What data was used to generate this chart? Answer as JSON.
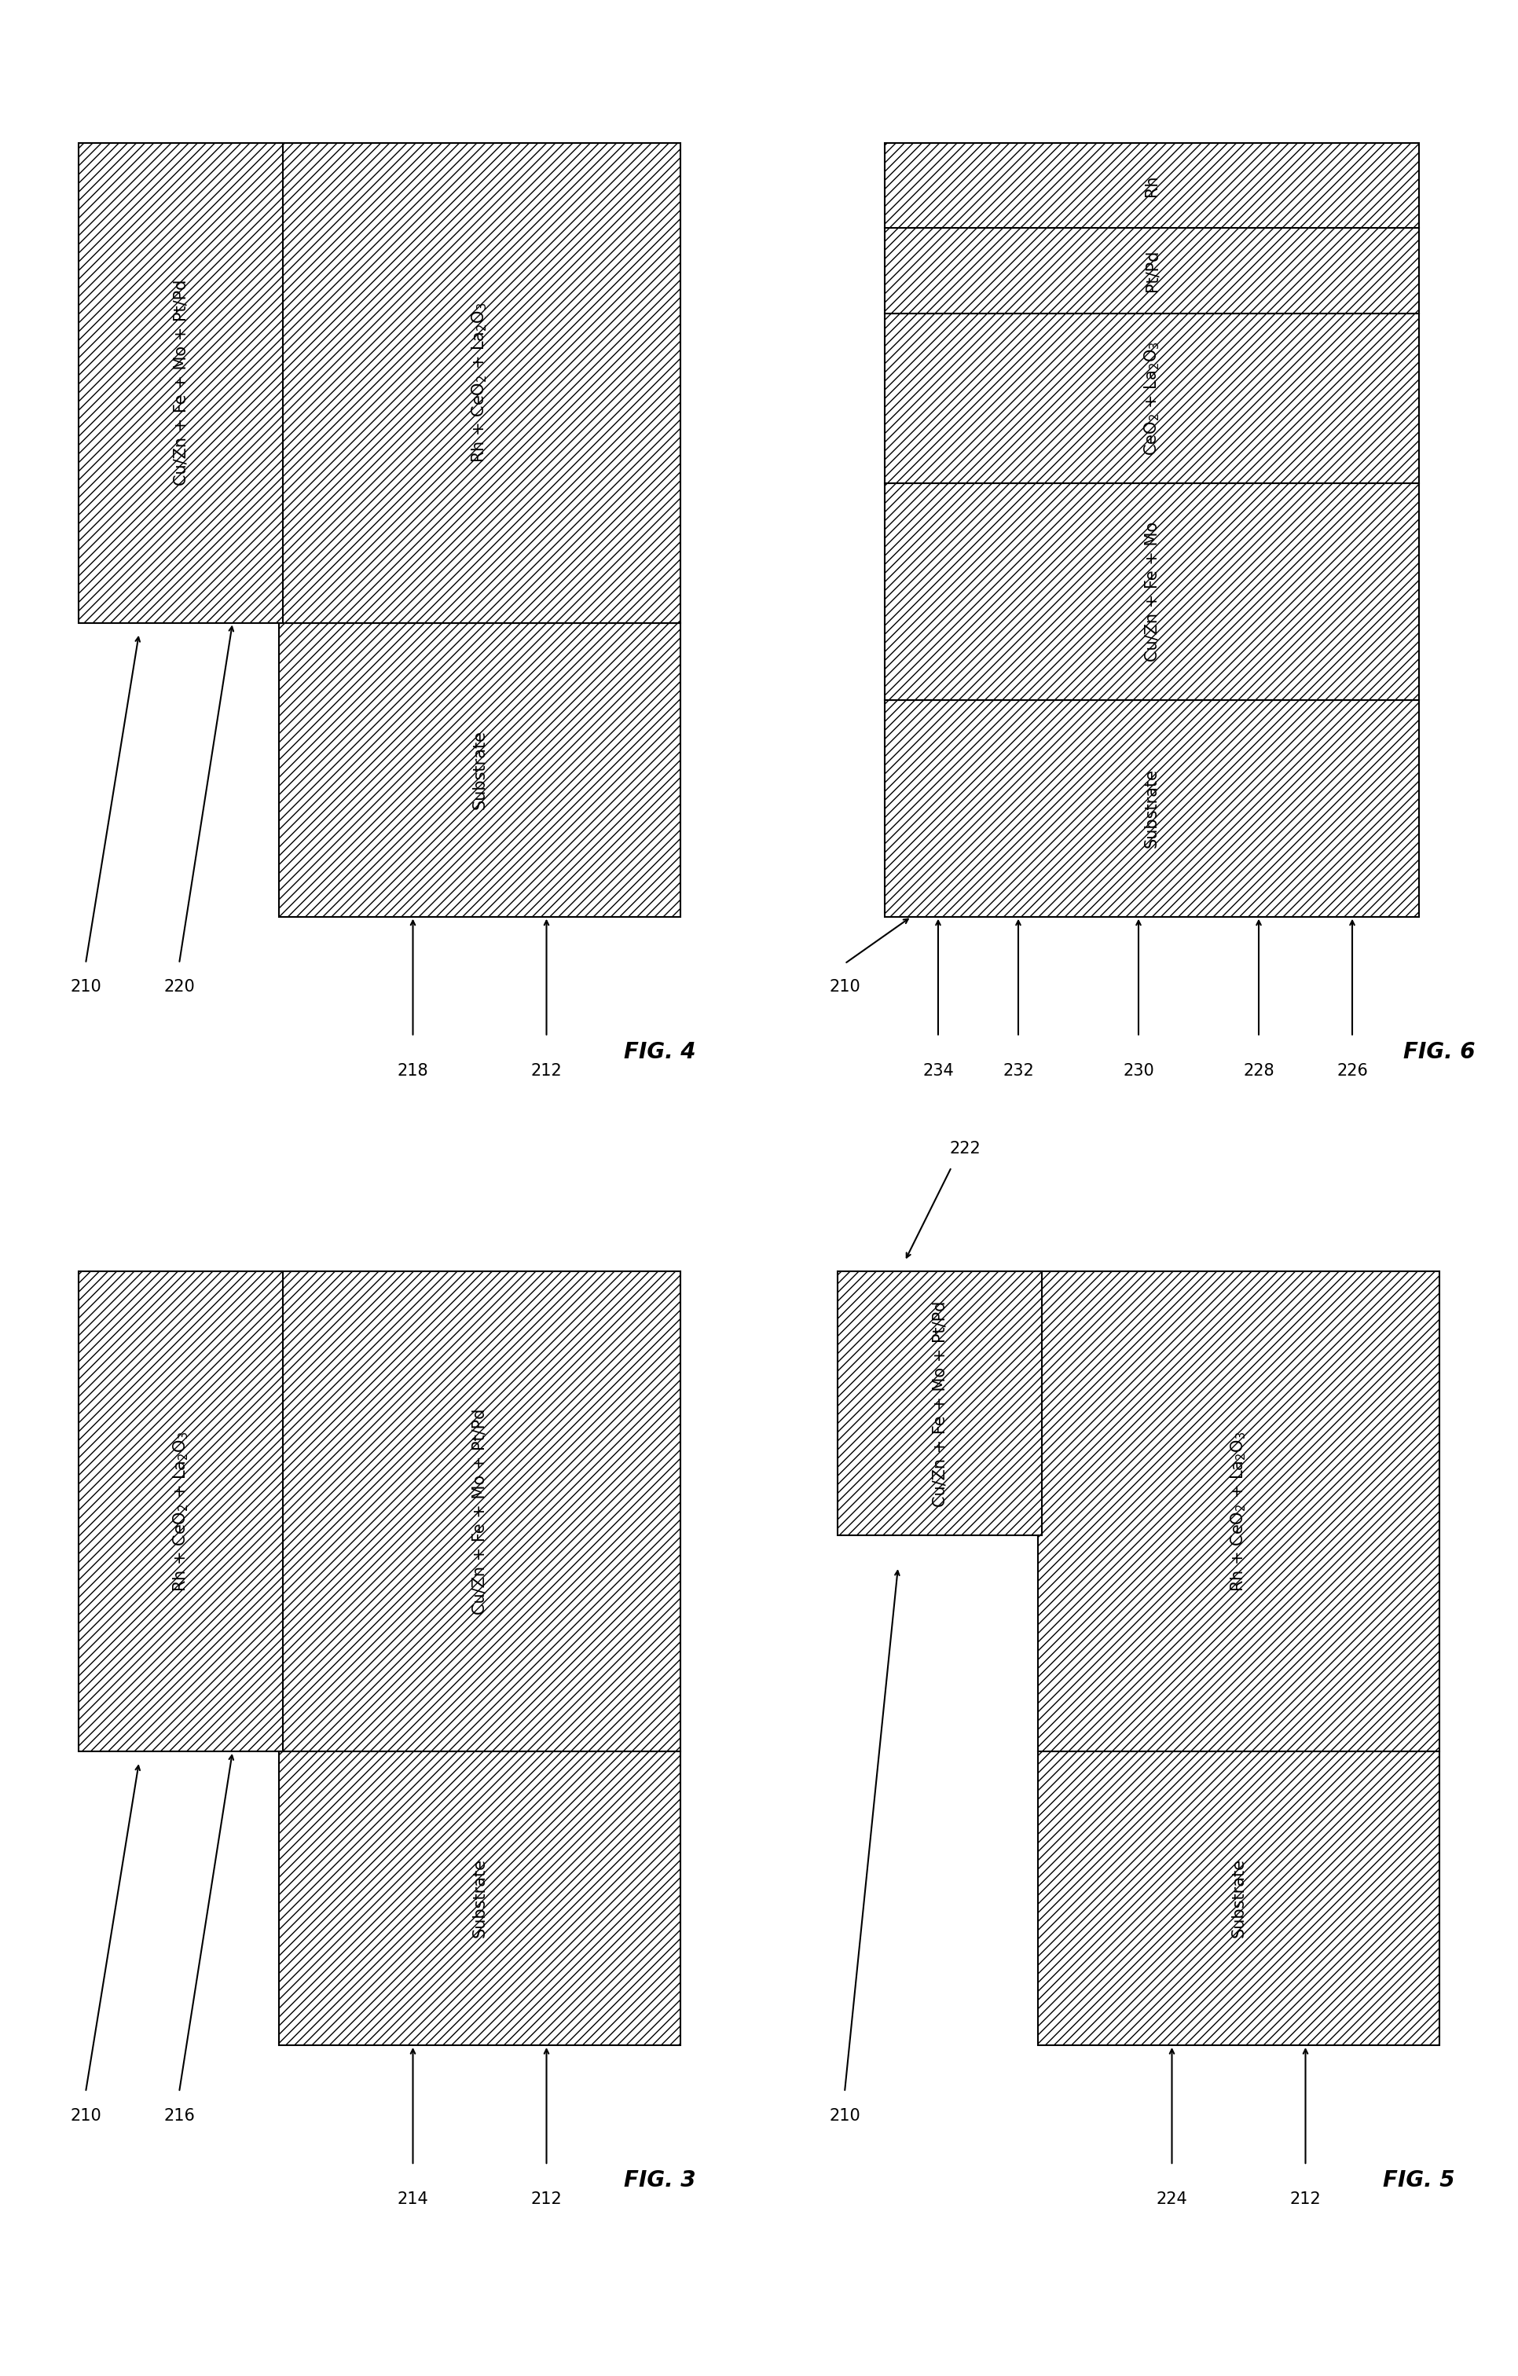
{
  "background": "#ffffff",
  "fig4": {
    "title": "FIG. 4",
    "left_layer_label": "Cu/Zn + Fe + Mo + Pt/Pd",
    "left_layer_ref": "220",
    "main_top_label": "Rh + CeO$_2$ + La$_2$O$_3$",
    "main_top_ref": "218",
    "main_bot_label": "Substrate",
    "main_bot_ref": "212",
    "ref_210": "210"
  },
  "fig6": {
    "title": "FIG. 6",
    "layers": [
      {
        "label": "Rh",
        "ref": "234"
      },
      {
        "label": "Pt/Pd",
        "ref": "232"
      },
      {
        "label": "CeO$_2$ + La$_2$O$_3$",
        "ref": "230"
      },
      {
        "label": "Cu/Zn + Fe + Mo",
        "ref": "228"
      },
      {
        "label": "Substrate",
        "ref": "226"
      }
    ],
    "ref_210": "210"
  },
  "fig3": {
    "title": "FIG. 3",
    "left_layer_label": "Rh + CeO$_2$ + La$_2$O$_3$",
    "left_layer_ref": "216",
    "main_top_label": "Cu/Zn + Fe + Mo + Pt/Pd",
    "main_top_ref": "214",
    "main_bot_label": "Substrate",
    "main_bot_ref": "212",
    "ref_210": "210"
  },
  "fig5": {
    "title": "FIG. 5",
    "left_layer_label": "Cu/Zn + Fe + Mo + Pt/Pd",
    "left_layer_ref": "222",
    "main_top_label": "Rh + CeO$_2$ + La$_2$O$_3$",
    "main_top_ref": "224",
    "main_bot_label": "Substrate",
    "main_bot_ref": "212",
    "ref_210": "210"
  }
}
